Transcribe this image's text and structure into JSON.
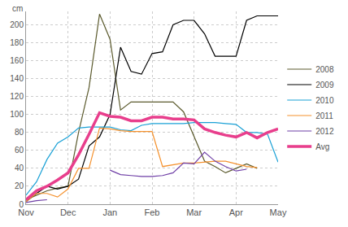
{
  "chart_data": {
    "type": "line",
    "y_label": "cm",
    "categories": [
      "Nov",
      null,
      null,
      null,
      "Dec",
      null,
      null,
      null,
      "Jan",
      null,
      null,
      null,
      "Feb",
      null,
      null,
      null,
      "Mar",
      null,
      null,
      null,
      "Apr",
      null,
      null,
      null,
      "May"
    ],
    "series": [
      {
        "name": "2008",
        "color": "#5c5b2e",
        "values": [
          5,
          10,
          15,
          18,
          20,
          80,
          130,
          212,
          184,
          105,
          114,
          114,
          114,
          114,
          114,
          103,
          75,
          48,
          42,
          35,
          40,
          45,
          40,
          null,
          null
        ]
      },
      {
        "name": "2009",
        "color": "#000000",
        "values": [
          3,
          12,
          20,
          17,
          20,
          28,
          65,
          75,
          100,
          175,
          148,
          145,
          168,
          170,
          200,
          205,
          205,
          190,
          165,
          165,
          165,
          205,
          210,
          210,
          210
        ]
      },
      {
        "name": "2010",
        "color": "#1ba1d6",
        "values": [
          10,
          25,
          50,
          68,
          75,
          85,
          86,
          86,
          86,
          83,
          82,
          88,
          90,
          90,
          90,
          90,
          91,
          91,
          91,
          90,
          89,
          80,
          80,
          78,
          47
        ]
      },
      {
        "name": "2011",
        "color": "#f5922f",
        "values": [
          3,
          12,
          12,
          8,
          17,
          40,
          40,
          85,
          84,
          82,
          81,
          81,
          81,
          42,
          44,
          46,
          46,
          47,
          48,
          48,
          45,
          42,
          41,
          null,
          null
        ]
      },
      {
        "name": "2012",
        "color": "#6f3fa6",
        "values": [
          2,
          4,
          5,
          null,
          null,
          null,
          null,
          null,
          38,
          33,
          32,
          31,
          31,
          32,
          35,
          46,
          45,
          58,
          48,
          42,
          37,
          39,
          null,
          null,
          null
        ]
      },
      {
        "name": "Avg",
        "color": "#e83e8c",
        "values": [
          5,
          15,
          20,
          27,
          35,
          55,
          78,
          102,
          98,
          97,
          93,
          93,
          97,
          97,
          95,
          95,
          94,
          84,
          80,
          77,
          75,
          80,
          74,
          80,
          84
        ]
      }
    ],
    "ylim": [
      0,
      215
    ],
    "yticks": [
      0,
      20,
      40,
      60,
      80,
      100,
      120,
      140,
      160,
      180,
      200
    ],
    "grid": true,
    "legend": "right"
  }
}
